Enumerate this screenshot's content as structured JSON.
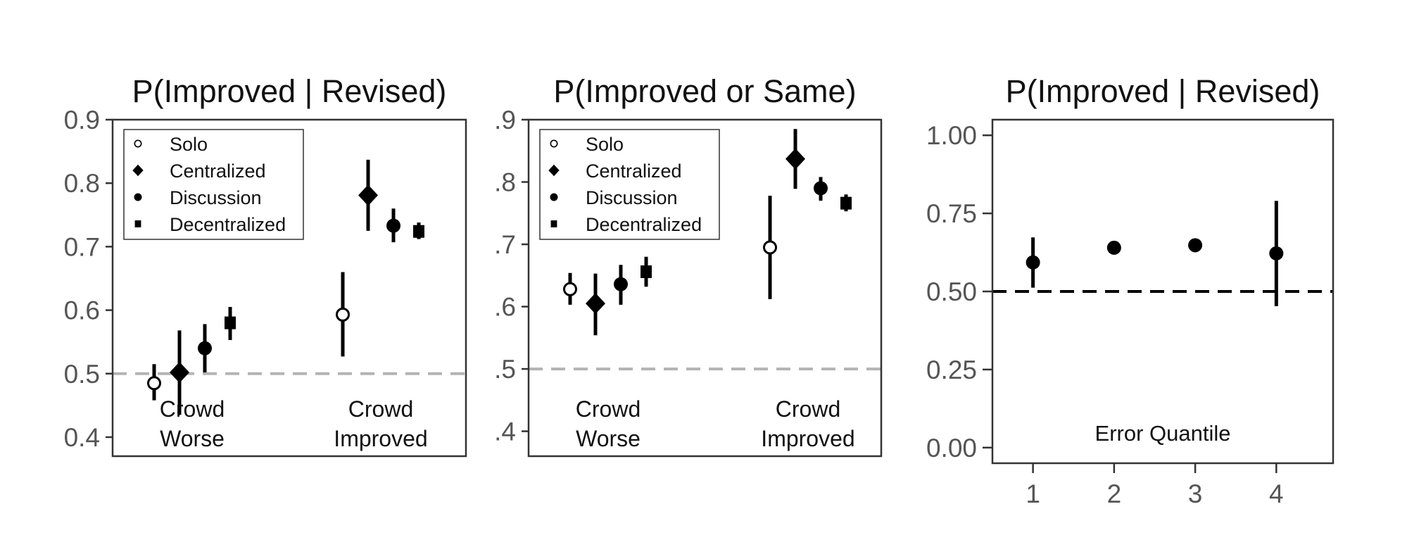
{
  "chart_data": [
    {
      "type": "scatter",
      "title": "P(Improved | Revised)",
      "ylim": [
        0.37,
        0.9
      ],
      "yticks": [
        0.4,
        0.5,
        0.6,
        0.7,
        0.8,
        0.9
      ],
      "ytick_labels": [
        "0.4",
        "0.5",
        "0.6",
        "0.7",
        "0.8",
        "0.9"
      ],
      "reference_line": 0.5,
      "reference_color": "#b3b3b3",
      "categories": [
        {
          "line1": "Crowd",
          "line2": "Worse"
        },
        {
          "line1": "Crowd",
          "line2": "Improved"
        }
      ],
      "legend": {
        "placement": "top-left",
        "entries": [
          {
            "label": "Solo",
            "marker": "open-circle"
          },
          {
            "label": "Centralized",
            "marker": "diamond"
          },
          {
            "label": "Discussion",
            "marker": "circle"
          },
          {
            "label": "Decentralized",
            "marker": "square"
          }
        ]
      },
      "series": [
        {
          "name": "Solo",
          "marker": "open-circle",
          "values": [
            0.485,
            0.593
          ],
          "lower": [
            0.458,
            0.527
          ],
          "upper": [
            0.515,
            0.66
          ]
        },
        {
          "name": "Centralized",
          "marker": "diamond",
          "values": [
            0.502,
            0.781
          ],
          "lower": [
            0.435,
            0.725
          ],
          "upper": [
            0.568,
            0.837
          ]
        },
        {
          "name": "Discussion",
          "marker": "circle",
          "values": [
            0.54,
            0.733
          ],
          "lower": [
            0.502,
            0.707
          ],
          "upper": [
            0.578,
            0.76
          ]
        },
        {
          "name": "Decentralized",
          "marker": "square",
          "values": [
            0.58,
            0.724
          ],
          "lower": [
            0.553,
            0.712
          ],
          "upper": [
            0.605,
            0.738
          ]
        }
      ]
    },
    {
      "type": "scatter",
      "title": "P(Improved or Same)",
      "ylim": [
        0.36,
        0.9
      ],
      "yticks": [
        0.4,
        0.5,
        0.6,
        0.7,
        0.8,
        0.9
      ],
      "ytick_labels": [
        ".4",
        ".5",
        ".6",
        ".7",
        ".8",
        ".9"
      ],
      "reference_line": 0.5,
      "reference_color": "#b3b3b3",
      "categories": [
        {
          "line1": "Crowd",
          "line2": "Worse"
        },
        {
          "line1": "Crowd",
          "line2": "Improved"
        }
      ],
      "legend": {
        "placement": "top-left",
        "entries": [
          {
            "label": "Solo",
            "marker": "open-circle"
          },
          {
            "label": "Centralized",
            "marker": "diamond"
          },
          {
            "label": "Discussion",
            "marker": "circle"
          },
          {
            "label": "Decentralized",
            "marker": "square"
          }
        ]
      },
      "series": [
        {
          "name": "Solo",
          "marker": "open-circle",
          "values": [
            0.628,
            0.695
          ],
          "lower": [
            0.603,
            0.612
          ],
          "upper": [
            0.654,
            0.778
          ]
        },
        {
          "name": "Centralized",
          "marker": "diamond",
          "values": [
            0.605,
            0.837
          ],
          "lower": [
            0.554,
            0.789
          ],
          "upper": [
            0.653,
            0.885
          ]
        },
        {
          "name": "Discussion",
          "marker": "circle",
          "values": [
            0.636,
            0.79
          ],
          "lower": [
            0.603,
            0.77
          ],
          "upper": [
            0.667,
            0.808
          ]
        },
        {
          "name": "Decentralized",
          "marker": "square",
          "values": [
            0.656,
            0.766
          ],
          "lower": [
            0.632,
            0.753
          ],
          "upper": [
            0.68,
            0.78
          ]
        }
      ]
    },
    {
      "type": "scatter",
      "title": "P(Improved | Revised)",
      "xlabel": "Error Quantile",
      "x": [
        1,
        2,
        3,
        4
      ],
      "xtick_labels": [
        "1",
        "2",
        "3",
        "4"
      ],
      "xlim": [
        0.5,
        4.7
      ],
      "ylim": [
        -0.05,
        1.05
      ],
      "yticks": [
        0,
        0.25,
        0.5,
        0.75,
        1.0
      ],
      "ytick_labels": [
        "0.00",
        "0.25",
        "0.50",
        "0.75",
        "1.00"
      ],
      "reference_line": 0.5,
      "reference_color": "#000000",
      "series": [
        {
          "marker": "circle",
          "values": [
            0.593,
            0.64,
            0.648,
            0.622
          ],
          "lower": [
            0.512,
            0.64,
            0.648,
            0.453
          ],
          "upper": [
            0.673,
            0.64,
            0.648,
            0.79
          ]
        }
      ]
    }
  ]
}
